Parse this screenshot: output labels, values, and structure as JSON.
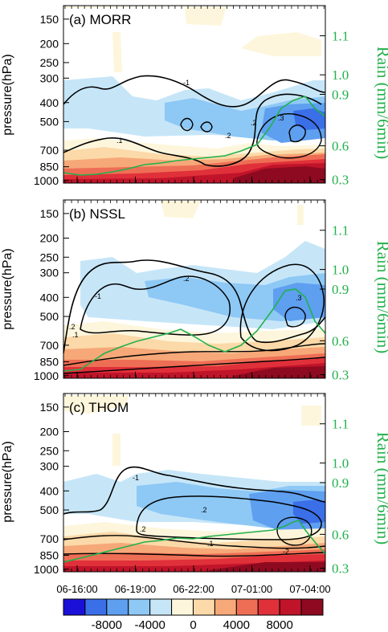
{
  "chart_data": [
    {
      "type": "contour",
      "title": "(a) MORR",
      "ylabel": "pressure(hPa)",
      "y2label": "Rain (mm/6min)",
      "yticks": [
        "150",
        "200",
        "250",
        "300",
        "400",
        "500",
        "700",
        "850",
        "1000"
      ],
      "y2ticks": [
        "0.3",
        "0.6",
        "0.9",
        "1.0",
        "1.1"
      ],
      "contour_labels": [
        "-1",
        ".1",
        ".2",
        ".2",
        ".3"
      ],
      "rain_series": {
        "x_hours": [
          0,
          1,
          2,
          3,
          4,
          5,
          6,
          7,
          8,
          9,
          10,
          11,
          12
        ],
        "values": [
          0.3,
          0.3,
          0.31,
          0.33,
          0.37,
          0.38,
          0.42,
          0.45,
          0.5,
          0.55,
          0.62,
          0.75,
          0.93
        ]
      }
    },
    {
      "type": "contour",
      "title": "(b) NSSL",
      "ylabel": "pressure(hPa)",
      "y2label": "Rain (mm/6min)",
      "yticks": [
        "150",
        "200",
        "250",
        "300",
        "400",
        "500",
        "700",
        "850",
        "1000"
      ],
      "y2ticks": [
        "0.3",
        "0.6",
        "0.9",
        "1.0",
        "1.1"
      ],
      "contour_labels": [
        "-1",
        ".1",
        ".2",
        ".2",
        ".3"
      ],
      "rain_series": {
        "x_hours": [
          0,
          1,
          2,
          3,
          4,
          5,
          6,
          7,
          8,
          9,
          10,
          11,
          12
        ],
        "values": [
          0.3,
          0.32,
          0.4,
          0.48,
          0.52,
          0.55,
          0.5,
          0.45,
          0.4,
          0.45,
          0.6,
          0.85,
          0.92
        ]
      }
    },
    {
      "type": "contour",
      "title": "(c) THOM",
      "ylabel": "pressure(hPa)",
      "y2label": "Rain (mm/6min)",
      "yticks": [
        "150",
        "200",
        "250",
        "300",
        "400",
        "500",
        "700",
        "850",
        "1000"
      ],
      "y2ticks": [
        "0.3",
        "0.6",
        "0.9",
        "1.0",
        "1.1"
      ],
      "contour_labels": [
        "-1",
        ".1",
        ".2",
        ".2",
        "-2"
      ],
      "rain_series": {
        "x_hours": [
          0,
          1,
          2,
          3,
          4,
          5,
          6,
          7,
          8,
          9,
          10,
          11,
          12
        ],
        "values": [
          0.3,
          0.33,
          0.38,
          0.45,
          0.52,
          0.58,
          0.6,
          0.58,
          0.62,
          0.68,
          0.75,
          0.72,
          0.65
        ]
      }
    }
  ],
  "xticks": [
    "06-16:00",
    "06-19:00",
    "06-22:00",
    "07-01:00",
    "07-04:00"
  ],
  "colorbar": {
    "labels": [
      "-8000",
      "-4000",
      "0",
      "4000",
      "8000"
    ],
    "colors": [
      "#1a10d8",
      "#3a6fe8",
      "#5e9ff0",
      "#8ec8f5",
      "#c6e6f8",
      "#fdf6dc",
      "#fcd9a8",
      "#f6a878",
      "#ee6e55",
      "#e0303a",
      "#c0142a",
      "#8e0a20"
    ]
  },
  "rain_color": "#22b14c"
}
